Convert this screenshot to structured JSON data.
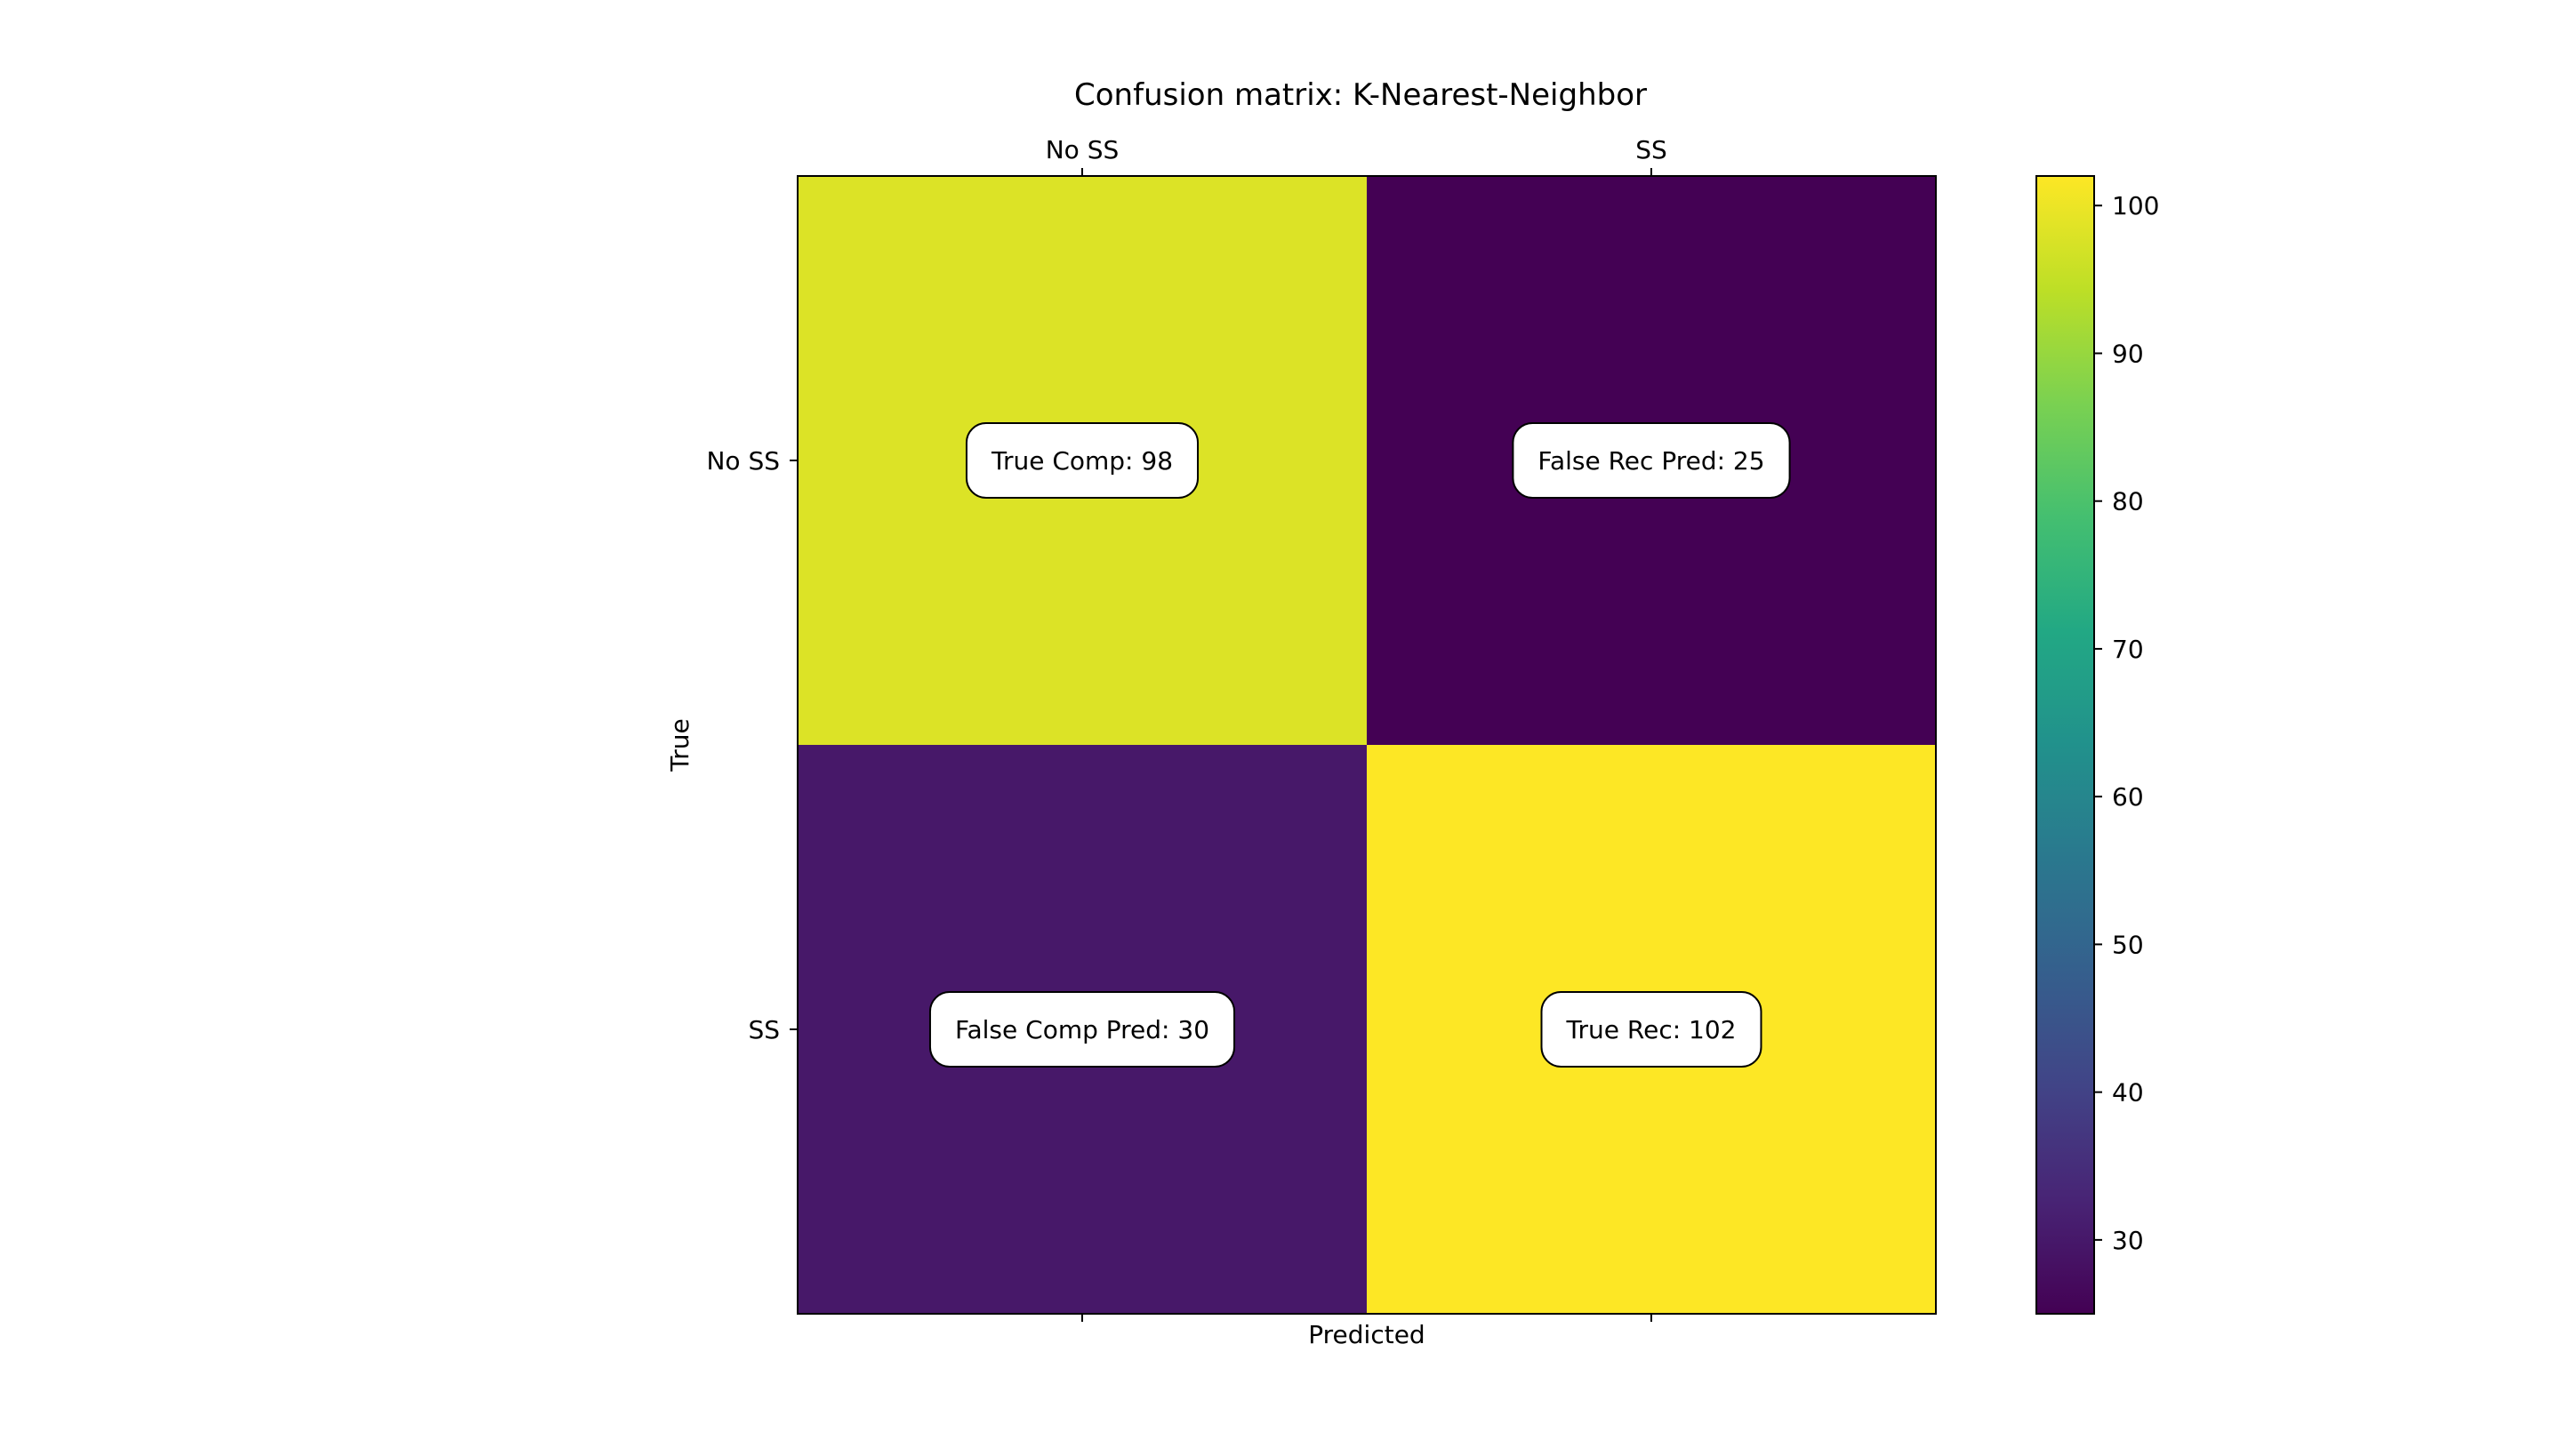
{
  "chart_data": {
    "type": "heatmap",
    "title": "Confusion matrix: K-Nearest-Neighbor",
    "xlabel": "Predicted",
    "ylabel": "True",
    "x_categories": [
      "No SS",
      "SS"
    ],
    "y_categories": [
      "No SS",
      "SS"
    ],
    "values": [
      [
        98,
        25
      ],
      [
        30,
        102
      ]
    ],
    "annotations": [
      [
        "True Comp: 98",
        "False Rec Pred: 25"
      ],
      [
        "False Comp Pred: 30",
        "True Rec: 102"
      ]
    ],
    "colormap": "viridis",
    "colorbar": {
      "min": 25,
      "max": 102,
      "ticks": [
        30,
        40,
        50,
        60,
        70,
        80,
        90,
        100
      ]
    },
    "x_tick_position": "top",
    "grid": false
  }
}
